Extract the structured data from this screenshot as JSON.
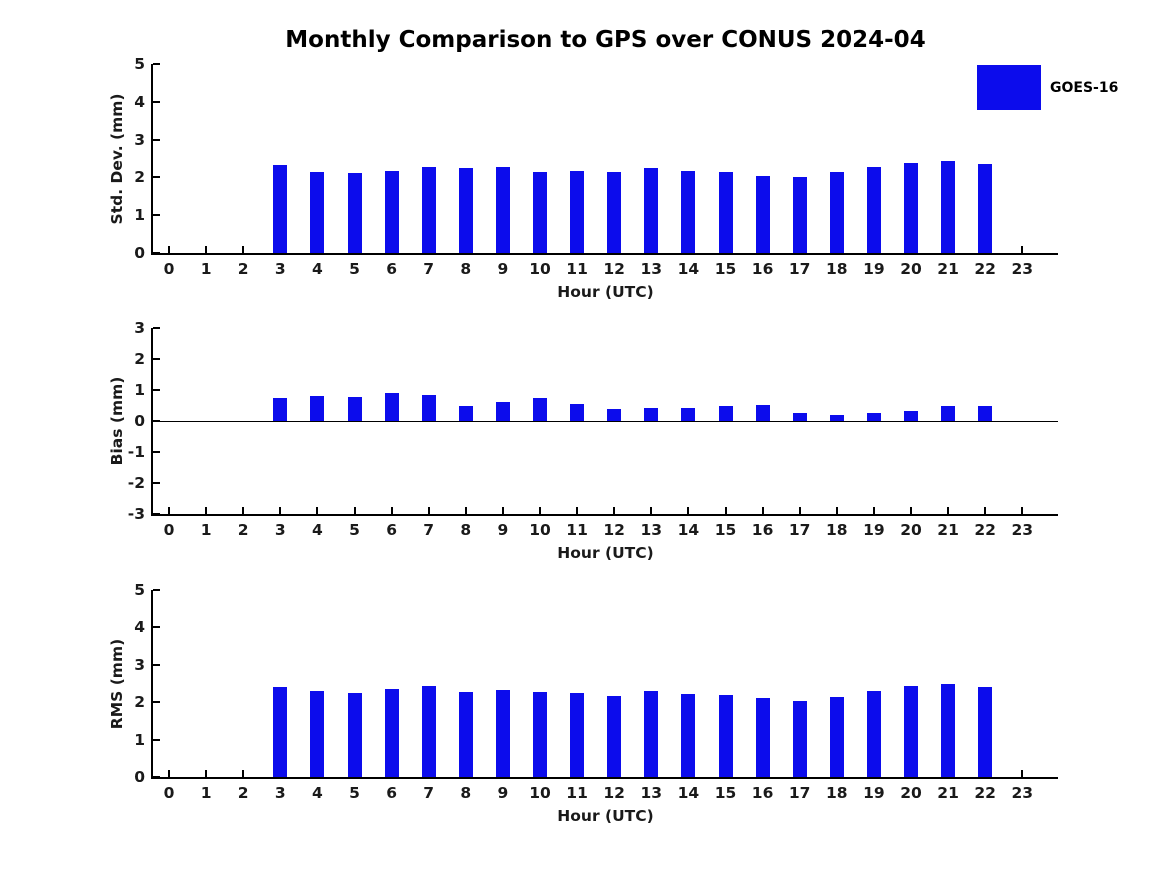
{
  "title": "Monthly Comparison to GPS over CONUS 2024-04",
  "legend": {
    "label": "GOES-16",
    "swatch_color": "#0c0cec",
    "position": "upper right"
  },
  "axes": {
    "xlabel": "Hour (UTC)",
    "hour_ticks": [
      "0",
      "1",
      "2",
      "3",
      "4",
      "5",
      "6",
      "7",
      "8",
      "9",
      "10",
      "11",
      "12",
      "13",
      "14",
      "15",
      "16",
      "17",
      "18",
      "19",
      "20",
      "21",
      "22",
      "23"
    ]
  },
  "chart_data": [
    {
      "type": "bar",
      "id": "std-dev",
      "title": "",
      "ylabel": "Std. Dev. (mm)",
      "xlabel": "Hour (UTC)",
      "ylim": [
        0,
        5
      ],
      "yticks": [
        0,
        1,
        2,
        3,
        4,
        5
      ],
      "grid": false,
      "zero_line": false,
      "series_name": "GOES-16",
      "bar_color": "#0c0cec",
      "x": [
        3,
        4,
        5,
        6,
        7,
        8,
        9,
        10,
        11,
        12,
        13,
        14,
        15,
        16,
        17,
        18,
        19,
        20,
        21,
        22
      ],
      "values": [
        2.32,
        2.13,
        2.11,
        2.16,
        2.28,
        2.24,
        2.27,
        2.13,
        2.16,
        2.14,
        2.26,
        2.16,
        2.13,
        2.05,
        2.02,
        2.13,
        2.28,
        2.39,
        2.43,
        2.35
      ]
    },
    {
      "type": "bar",
      "id": "bias",
      "title": "",
      "ylabel": "Bias (mm)",
      "xlabel": "Hour (UTC)",
      "ylim": [
        -3,
        3
      ],
      "yticks": [
        -3,
        -2,
        -1,
        0,
        1,
        2,
        3
      ],
      "grid": false,
      "zero_line": true,
      "series_name": "GOES-16",
      "bar_color": "#0c0cec",
      "x": [
        3,
        4,
        5,
        6,
        7,
        8,
        9,
        10,
        11,
        12,
        13,
        14,
        15,
        16,
        17,
        18,
        19,
        20,
        21,
        22
      ],
      "values": [
        0.75,
        0.82,
        0.76,
        0.89,
        0.85,
        0.48,
        0.6,
        0.75,
        0.54,
        0.4,
        0.43,
        0.43,
        0.5,
        0.51,
        0.27,
        0.2,
        0.27,
        0.31,
        0.47,
        0.5
      ]
    },
    {
      "type": "bar",
      "id": "rms",
      "title": "",
      "ylabel": "RMS (mm)",
      "xlabel": "Hour (UTC)",
      "ylim": [
        0,
        5
      ],
      "yticks": [
        0,
        1,
        2,
        3,
        4,
        5
      ],
      "grid": false,
      "zero_line": false,
      "series_name": "GOES-16",
      "bar_color": "#0c0cec",
      "x": [
        3,
        4,
        5,
        6,
        7,
        8,
        9,
        10,
        11,
        12,
        13,
        14,
        15,
        16,
        17,
        18,
        19,
        20,
        21,
        22
      ],
      "values": [
        2.41,
        2.29,
        2.24,
        2.34,
        2.42,
        2.27,
        2.32,
        2.27,
        2.24,
        2.17,
        2.29,
        2.21,
        2.19,
        2.1,
        2.04,
        2.13,
        2.31,
        2.42,
        2.49,
        2.41
      ]
    }
  ]
}
